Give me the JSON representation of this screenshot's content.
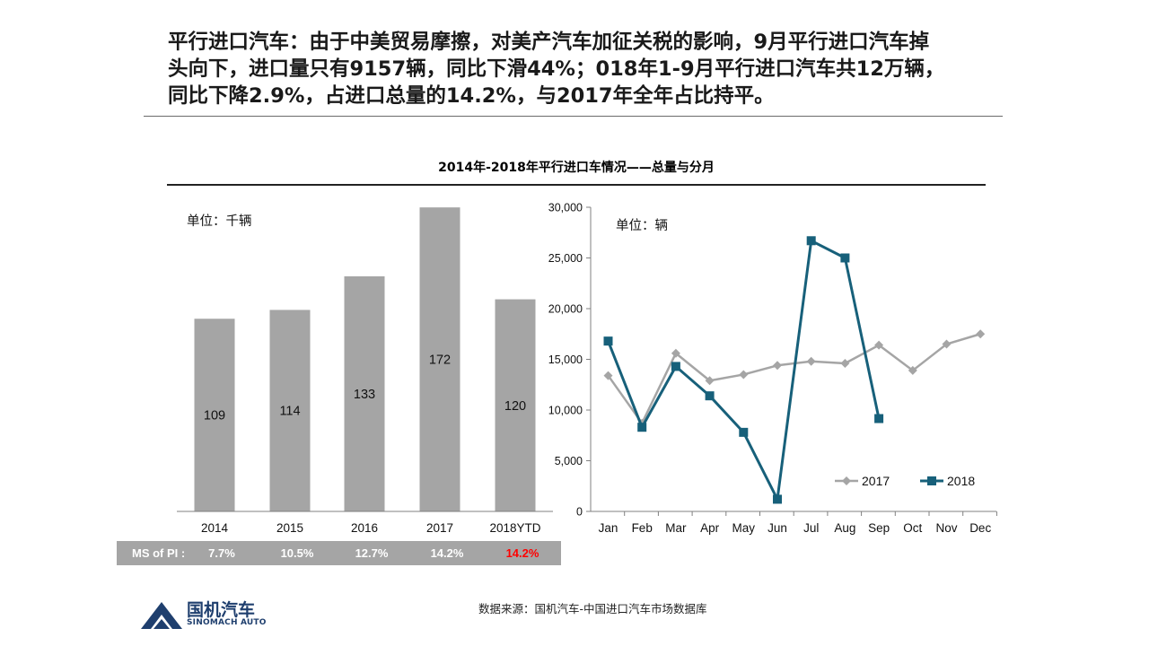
{
  "headline": {
    "line1": "平行进口汽车：由于中美贸易摩擦，对美产汽车加征关税的影响，9月平行进口汽车掉",
    "line2": "头向下，进口量只有9157辆，同比下滑44%；018年1-9月平行进口汽车共12万辆，",
    "line3": "同比下降2.9%，占进口总量的14.2%，与2017年全年占比持平。"
  },
  "chart_title": "2014年-2018年平行进口车情况——总量与分月",
  "source": "数据来源：国机汽车-中国进口汽车市场数据库",
  "logo": {
    "cn": "国机汽车",
    "en": "SINOMACH AUTO",
    "color": "#1f3f6e"
  },
  "colors": {
    "bar": "#a5a5a5",
    "line2017": "#a5a5a5",
    "line2018": "#17607a",
    "highlight": "#ff0000"
  },
  "chart_data": [
    {
      "type": "bar",
      "unit_label": "单位：千辆",
      "categories": [
        "2014",
        "2015",
        "2016",
        "2017",
        "2018YTD"
      ],
      "values": [
        109,
        114,
        133,
        172,
        120
      ],
      "ylim": [
        0,
        200
      ],
      "grid": false,
      "ms_of_pi": {
        "label": "MS of PI :",
        "values": [
          "7.7%",
          "10.5%",
          "12.7%",
          "14.2%",
          "14.2%"
        ],
        "highlight_index": 4
      }
    },
    {
      "type": "line",
      "unit_label": "单位：辆",
      "categories": [
        "Jan",
        "Feb",
        "Mar",
        "Apr",
        "May",
        "Jun",
        "Jul",
        "Aug",
        "Sep",
        "Oct",
        "Nov",
        "Dec"
      ],
      "ylim": [
        0,
        30000
      ],
      "yticks": [
        0,
        5000,
        10000,
        15000,
        20000,
        25000,
        30000
      ],
      "ytick_labels": [
        "0",
        "5,000",
        "10,000",
        "15,000",
        "20,000",
        "25,000",
        "30,000"
      ],
      "grid": false,
      "legend_position": "bottom-right",
      "series": [
        {
          "name": "2017",
          "marker": "diamond",
          "values": [
            13400,
            8700,
            15600,
            12900,
            13500,
            14400,
            14800,
            14600,
            16400,
            13900,
            16500,
            17500
          ]
        },
        {
          "name": "2018",
          "marker": "square",
          "values": [
            16800,
            8300,
            14300,
            11400,
            7800,
            1200,
            26700,
            25000,
            9157,
            null,
            null,
            null
          ]
        }
      ]
    }
  ]
}
